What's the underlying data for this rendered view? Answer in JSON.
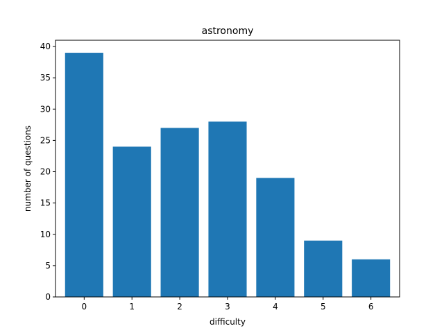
{
  "chart_data": {
    "type": "bar",
    "title": "astronomy",
    "xlabel": "difficulty",
    "ylabel": "number of questions",
    "categories": [
      "0",
      "1",
      "2",
      "3",
      "4",
      "5",
      "6"
    ],
    "values": [
      39,
      24,
      27,
      28,
      19,
      9,
      6
    ],
    "ylim": [
      0,
      41
    ],
    "yticks": [
      0,
      5,
      10,
      15,
      20,
      25,
      30,
      35,
      40
    ],
    "xlim": [
      -0.6,
      6.6
    ],
    "bar_color": "#1f77b4",
    "grid": false,
    "legend": "none"
  }
}
